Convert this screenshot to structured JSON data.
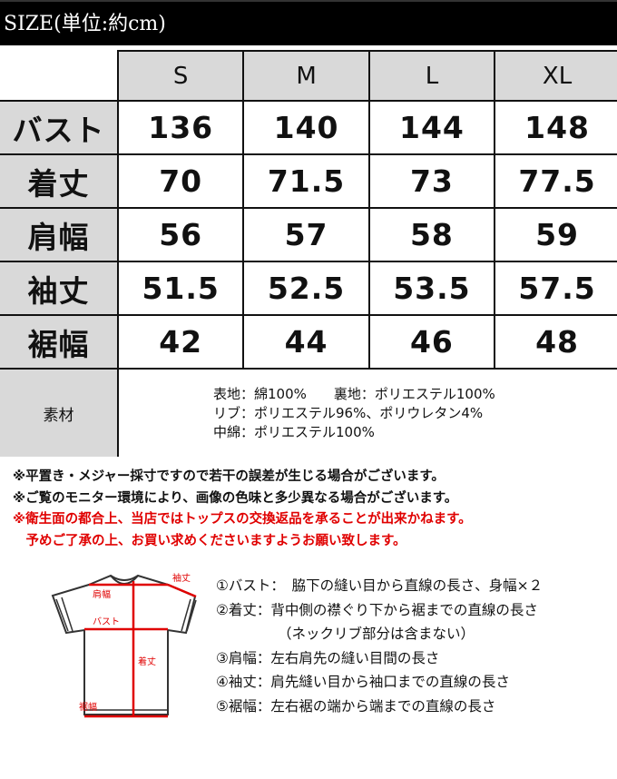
{
  "title": "SIZE(単位:約cm)",
  "table": {
    "sizes": [
      "S",
      "M",
      "L",
      "XL"
    ],
    "rows": [
      {
        "label": "バスト",
        "values": [
          "136",
          "140",
          "144",
          "148"
        ]
      },
      {
        "label": "着丈",
        "values": [
          "70",
          "71.5",
          "73",
          "77.5"
        ]
      },
      {
        "label": "肩幅",
        "values": [
          "56",
          "57",
          "58",
          "59"
        ]
      },
      {
        "label": "袖丈",
        "values": [
          "51.5",
          "52.5",
          "53.5",
          "57.5"
        ]
      },
      {
        "label": "裾幅",
        "values": [
          "42",
          "44",
          "46",
          "48"
        ]
      }
    ],
    "material_label": "素材",
    "material_lines": [
      "表地：綿100%　　裏地：ポリエステル100%",
      "リブ：ポリエステル96%、ポリウレタン4%",
      "中綿：ポリエステル100%"
    ]
  },
  "notes": [
    "※平置き・メジャー採寸ですので若干の誤差が生じる場合がございます。",
    "※ご覧のモニター環境により、画像の色味と多少異なる場合がございます。"
  ],
  "warnings": [
    "※衛生面の都合上、当店ではトップスの交換返品を承ることが出来かねます。",
    "　予めご了承の上、お買い求めくださいますようお願い致します。"
  ],
  "diagram": {
    "labels": {
      "shoulder": "肩幅",
      "bust": "バスト",
      "length": "着丈",
      "sleeve": "袖丈",
      "hem": "裾幅"
    },
    "accent": "#e00000"
  },
  "descriptions": [
    "①バスト：　脇下の縫い目から直線の長さ、身幅×２",
    "②着丈：背中側の襟ぐり下から裾までの直線の長さ",
    "（ネックリブ部分は含まない）",
    "③肩幅：左右肩先の縫い目間の長さ",
    "④袖丈：肩先縫い目から袖口までの直線の長さ",
    "⑤裾幅：左右裾の端から端までの直線の長さ"
  ]
}
